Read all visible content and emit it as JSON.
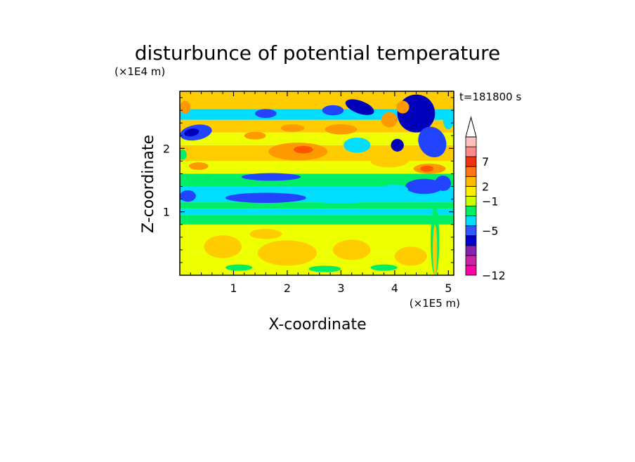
{
  "chart_data": {
    "type": "heatmap",
    "title": "disturbunce of potential temperature",
    "xlabel": "X-coordinate",
    "ylabel": "Z-coordinate",
    "x_unit": "(×1E5 m)",
    "y_unit": "(×1E4 m)",
    "time_label": "t=181800 s",
    "xlim": [
      0,
      5.1
    ],
    "ylim": [
      0,
      2.9
    ],
    "x_ticks": [
      "1",
      "2",
      "3",
      "4",
      "5"
    ],
    "y_ticks": [
      "1",
      "2"
    ],
    "colorbar": {
      "tick_labels": [
        "7",
        "2",
        "−1",
        "−5",
        "−12"
      ],
      "colors": [
        "#ff00aa",
        "#cc22aa",
        "#8822aa",
        "#0000cc",
        "#3355ff",
        "#00ddff",
        "#00ee66",
        "#ccff00",
        "#ffee00",
        "#ffbb00",
        "#ff7711",
        "#ee3311",
        "#ff8888",
        "#ffc0c0",
        "#ffffff"
      ]
    },
    "field_colors": {
      "dark_blue": "#0000bb",
      "blue": "#2244ff",
      "cyan": "#00ddff",
      "green": "#00ee66",
      "yellow": "#eeff00",
      "light_orange": "#ffcc00",
      "orange": "#ff9900",
      "red_orange": "#ff5500"
    }
  }
}
